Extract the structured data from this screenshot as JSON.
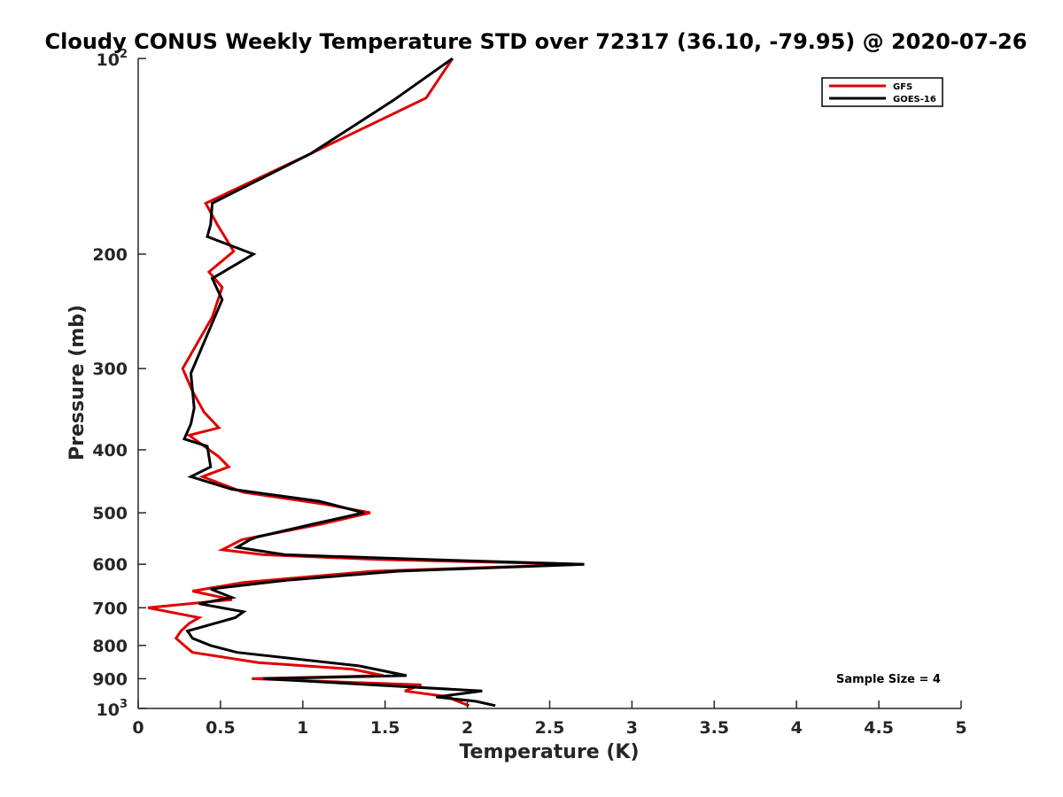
{
  "chart_data": {
    "type": "line",
    "title": "Cloudy CONUS Weekly Temperature STD over 72317 (36.10, -79.95) @ 2020-07-26",
    "xlabel": "Temperature (K)",
    "ylabel": "Pressure (mb)",
    "xlim": [
      0,
      5
    ],
    "ylim": [
      100,
      1000
    ],
    "yscale": "log",
    "yreversed": true,
    "x_ticks": [
      "0",
      "0.5",
      "1",
      "1.5",
      "2",
      "2.5",
      "3",
      "3.5",
      "4",
      "4.5",
      "5"
    ],
    "y_ticks": [
      {
        "value": 100,
        "base": "10",
        "exp": "2"
      },
      {
        "value": 200,
        "label": "200"
      },
      {
        "value": 300,
        "label": "300"
      },
      {
        "value": 400,
        "label": "400"
      },
      {
        "value": 500,
        "label": "500"
      },
      {
        "value": 600,
        "label": "600"
      },
      {
        "value": 700,
        "label": "700"
      },
      {
        "value": 800,
        "label": "800"
      },
      {
        "value": 900,
        "label": "900"
      },
      {
        "value": 1000,
        "base": "10",
        "exp": "3"
      }
    ],
    "grid": false,
    "legend_position": "top-right",
    "annotation": "Sample Size = 4",
    "series": [
      {
        "name": "GFS",
        "color": "#e00000",
        "points": [
          [
            1.91,
            100
          ],
          [
            1.75,
            115
          ],
          [
            1.05,
            140
          ],
          [
            0.41,
            167
          ],
          [
            0.48,
            180
          ],
          [
            0.58,
            198
          ],
          [
            0.43,
            213
          ],
          [
            0.51,
            225
          ],
          [
            0.45,
            250
          ],
          [
            0.27,
            300
          ],
          [
            0.33,
            325
          ],
          [
            0.4,
            350
          ],
          [
            0.49,
            370
          ],
          [
            0.31,
            380
          ],
          [
            0.49,
            410
          ],
          [
            0.55,
            425
          ],
          [
            0.39,
            440
          ],
          [
            0.64,
            465
          ],
          [
            1.13,
            485
          ],
          [
            1.41,
            500
          ],
          [
            1.12,
            520
          ],
          [
            0.63,
            550
          ],
          [
            0.51,
            570
          ],
          [
            0.76,
            580
          ],
          [
            1.45,
            590
          ],
          [
            2.71,
            600
          ],
          [
            1.43,
            615
          ],
          [
            0.64,
            640
          ],
          [
            0.33,
            660
          ],
          [
            0.57,
            680
          ],
          [
            0.06,
            700
          ],
          [
            0.37,
            725
          ],
          [
            0.31,
            740
          ],
          [
            0.26,
            760
          ],
          [
            0.23,
            780
          ],
          [
            0.28,
            800
          ],
          [
            0.33,
            820
          ],
          [
            0.73,
            850
          ],
          [
            1.3,
            870
          ],
          [
            1.49,
            890
          ],
          [
            0.69,
            900
          ],
          [
            1.72,
            920
          ],
          [
            1.62,
            940
          ],
          [
            1.89,
            960
          ],
          [
            1.92,
            970
          ],
          [
            2.01,
            990
          ]
        ]
      },
      {
        "name": "GOES-16",
        "color": "#000000",
        "points": [
          [
            1.91,
            100
          ],
          [
            1.55,
            116
          ],
          [
            1.05,
            140
          ],
          [
            0.45,
            167
          ],
          [
            0.44,
            180
          ],
          [
            0.42,
            188
          ],
          [
            0.7,
            200
          ],
          [
            0.45,
            218
          ],
          [
            0.51,
            235
          ],
          [
            0.32,
            305
          ],
          [
            0.34,
            345
          ],
          [
            0.32,
            365
          ],
          [
            0.28,
            385
          ],
          [
            0.42,
            395
          ],
          [
            0.44,
            425
          ],
          [
            0.32,
            440
          ],
          [
            0.57,
            460
          ],
          [
            1.1,
            480
          ],
          [
            1.37,
            500
          ],
          [
            1.07,
            520
          ],
          [
            0.72,
            545
          ],
          [
            0.68,
            550
          ],
          [
            0.6,
            565
          ],
          [
            0.89,
            580
          ],
          [
            1.75,
            590
          ],
          [
            2.71,
            600
          ],
          [
            1.58,
            615
          ],
          [
            0.9,
            635
          ],
          [
            0.44,
            655
          ],
          [
            0.57,
            675
          ],
          [
            0.37,
            690
          ],
          [
            0.64,
            710
          ],
          [
            0.59,
            725
          ],
          [
            0.3,
            760
          ],
          [
            0.33,
            780
          ],
          [
            0.44,
            800
          ],
          [
            0.6,
            820
          ],
          [
            1.34,
            860
          ],
          [
            1.63,
            890
          ],
          [
            0.76,
            900
          ],
          [
            2.09,
            940
          ],
          [
            1.81,
            960
          ],
          [
            2.05,
            975
          ],
          [
            2.17,
            990
          ]
        ]
      }
    ]
  }
}
